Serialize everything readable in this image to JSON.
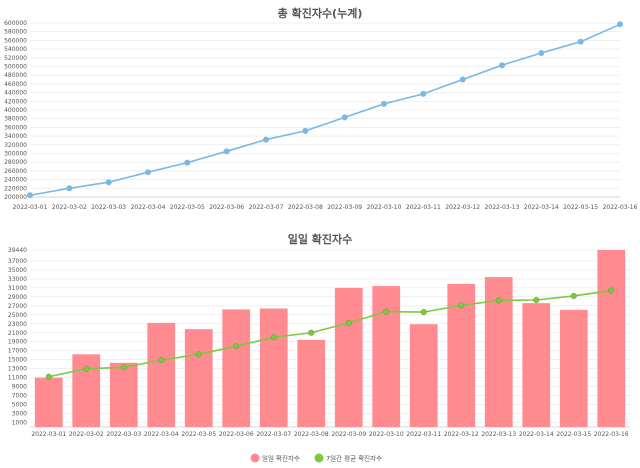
{
  "chart_data": [
    {
      "type": "line",
      "title": "총 확진자수(누계)",
      "categories": [
        "2022-03-01",
        "2022-03-02",
        "2022-03-03",
        "2022-03-04",
        "2022-03-05",
        "2022-03-06",
        "2022-03-07",
        "2022-03-08",
        "2022-03-09",
        "2022-03-10",
        "2022-03-11",
        "2022-03-12",
        "2022-03-13",
        "2022-03-14",
        "2022-03-15",
        "2022-03-16"
      ],
      "yticks": [
        "200000",
        "220000",
        "240000",
        "260000",
        "280000",
        "300000",
        "320000",
        "340000",
        "360000",
        "380000",
        "400000",
        "420000",
        "440000",
        "460000",
        "480000",
        "500000",
        "520000",
        "540000",
        "560000",
        "580000",
        "600000"
      ],
      "ylim": [
        200000,
        600000
      ],
      "series": [
        {
          "values": [
            204000,
            220000,
            234000,
            257000,
            279000,
            305000,
            332000,
            352000,
            383000,
            414000,
            437000,
            470000,
            503000,
            531000,
            557000,
            597000
          ],
          "color": "#7ab8e6"
        }
      ],
      "grid": true
    },
    {
      "type": "bar",
      "title": "일일 확진자수",
      "categories": [
        "2022-03-01",
        "2022-03-02",
        "2022-03-03",
        "2022-03-04",
        "2022-03-05",
        "2022-03-06",
        "2022-03-07",
        "2022-03-08",
        "2022-03-09",
        "2022-03-10",
        "2022-03-11",
        "2022-03-12",
        "2022-03-13",
        "2022-03-14",
        "2022-03-15",
        "2022-03-16"
      ],
      "yticks": [
        "1000",
        "3000",
        "5000",
        "7000",
        "9000",
        "11000",
        "13000",
        "15000",
        "17000",
        "19000",
        "21000",
        "23000",
        "25000",
        "27000",
        "29000",
        "31000",
        "33000",
        "35000",
        "37000",
        "39440"
      ],
      "ylim": [
        0,
        39440
      ],
      "series": [
        {
          "name": "일일 확진자수",
          "type": "bar",
          "color": "#ff8a8f",
          "values": [
            11000,
            16200,
            14300,
            23200,
            21800,
            26200,
            26400,
            19400,
            31000,
            31400,
            22900,
            31900,
            33400,
            27600,
            26100,
            39440
          ]
        },
        {
          "name": "7일간 평균 확진자수",
          "type": "line",
          "color": "#7ac943",
          "values": [
            11200,
            13000,
            13300,
            14900,
            16200,
            18000,
            20000,
            21000,
            23200,
            25700,
            25600,
            27100,
            28200,
            28300,
            29200,
            30400
          ]
        }
      ],
      "legend": "bottom",
      "grid": true
    }
  ]
}
